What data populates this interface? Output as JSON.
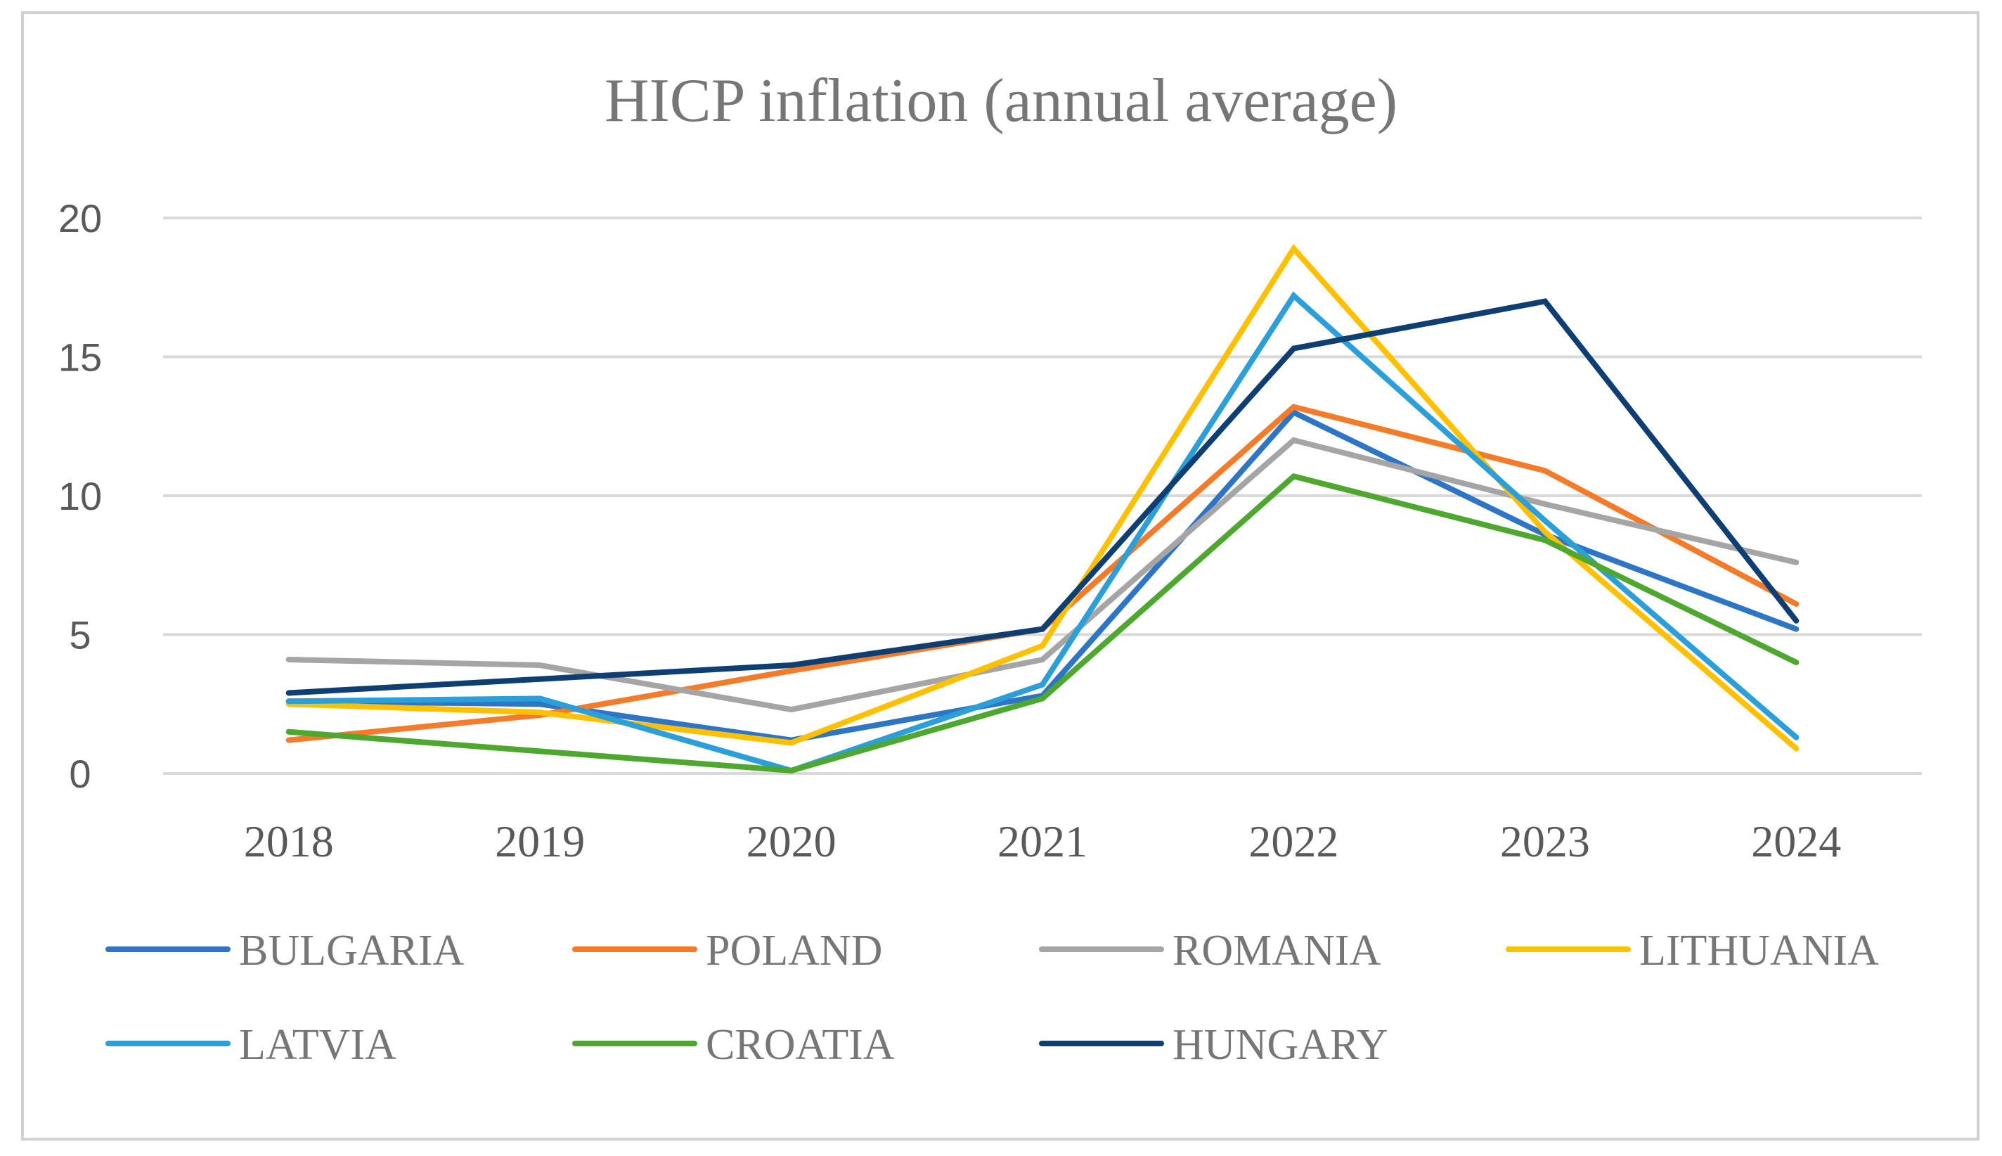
{
  "chart_data": {
    "type": "line",
    "title": "HICP inflation (annual average)",
    "xlabel": "",
    "ylabel": "",
    "categories": [
      "2018",
      "2019",
      "2020",
      "2021",
      "2022",
      "2023",
      "2024"
    ],
    "ylim": [
      0,
      20
    ],
    "yticks": [
      "0",
      "5",
      "10",
      "15",
      "20"
    ],
    "grid": true,
    "legend_position": "bottom",
    "series": [
      {
        "name": "BULGARIA",
        "color": "#2E75C6",
        "values": [
          2.6,
          2.5,
          1.2,
          2.8,
          13.0,
          8.6,
          5.2
        ]
      },
      {
        "name": "POLAND",
        "color": "#F47B2A",
        "values": [
          1.2,
          2.1,
          3.7,
          5.2,
          13.2,
          10.9,
          6.1
        ]
      },
      {
        "name": "ROMANIA",
        "color": "#A5A5A5",
        "values": [
          4.1,
          3.9,
          2.3,
          4.1,
          12.0,
          9.7,
          7.6
        ]
      },
      {
        "name": "LITHUANIA",
        "color": "#FFC000",
        "values": [
          2.5,
          2.2,
          1.1,
          4.6,
          18.9,
          8.7,
          0.9
        ]
      },
      {
        "name": "LATVIA",
        "color": "#2D9FD8",
        "values": [
          2.6,
          2.7,
          0.1,
          3.2,
          17.2,
          9.1,
          1.3
        ]
      },
      {
        "name": "CROATIA",
        "color": "#4EA72E",
        "values": [
          1.5,
          0.8,
          0.1,
          2.7,
          10.7,
          8.4,
          4.0
        ]
      },
      {
        "name": "HUNGARY",
        "color": "#0F3F72",
        "values": [
          2.9,
          3.4,
          3.9,
          5.2,
          15.3,
          17.0,
          5.5
        ]
      }
    ]
  }
}
